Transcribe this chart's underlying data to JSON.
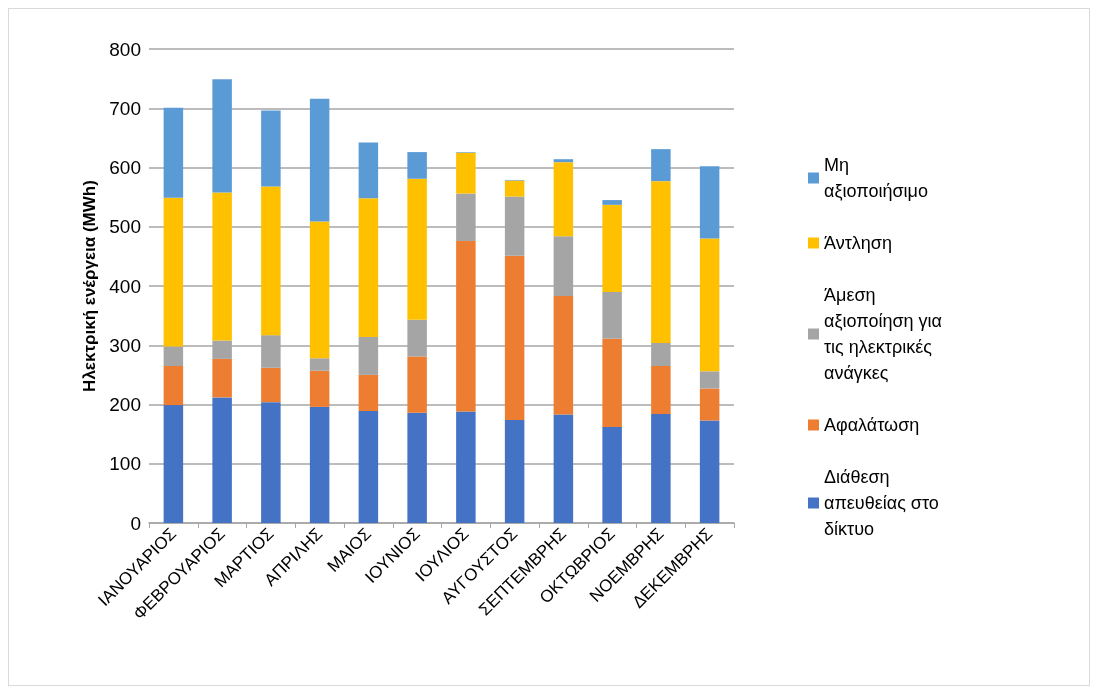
{
  "chart_data": {
    "type": "bar",
    "stacked": true,
    "ylabel": "Ηλεκτρική ενέργεια (MWh)",
    "categories": [
      "ΙΑΝΟΥΑΡΙΟΣ",
      "ΦΕΒΡΟΥΑΡΙΟΣ",
      "ΜΑΡΤΙΟΣ",
      "ΑΠΡΙΛΗΣ",
      "ΜΑΙΟΣ",
      "ΙΟΥΝΙΟΣ",
      "ΙΟΥΛΙΟΣ",
      "ΑΥΓΟΥΣΤΟΣ",
      "ΣΕΠΤΕΜΒΡΗΣ",
      "ΟΚΤΩΒΡΙΟΣ",
      "ΝΟΕΜΒΡΗΣ",
      "ΔΕΚΕΜΒΡΗΣ"
    ],
    "series": [
      {
        "name": "Διάθεση απευθείας στο δίκτυο",
        "color": "#4472c4",
        "values": [
          199,
          212,
          204,
          196,
          189,
          186,
          188,
          174,
          183,
          162,
          184,
          173
        ]
      },
      {
        "name": "Αφαλάτωση",
        "color": "#ed7d31",
        "values": [
          66,
          65,
          58,
          61,
          61,
          95,
          288,
          277,
          200,
          149,
          81,
          54
        ]
      },
      {
        "name": "Άμεση αξιοποίηση για τις ηλεκτρικές ανάγκες",
        "color": "#a5a5a5",
        "values": [
          33,
          31,
          55,
          21,
          64,
          62,
          80,
          100,
          101,
          79,
          39,
          29
        ]
      },
      {
        "name": "Άντληση",
        "color": "#ffc000",
        "values": [
          251,
          250,
          251,
          231,
          234,
          238,
          69,
          27,
          125,
          147,
          273,
          224
        ]
      },
      {
        "name": "Μη αξιοποιήσιμο",
        "color": "#5b9bd5",
        "values": [
          152,
          191,
          128,
          207,
          94,
          45,
          1,
          1,
          5,
          8,
          54,
          122
        ]
      }
    ],
    "ylim": [
      0,
      800
    ],
    "yticks": [
      0,
      100,
      200,
      300,
      400,
      500,
      600,
      700,
      800
    ],
    "grid": "y",
    "legend": "right"
  }
}
